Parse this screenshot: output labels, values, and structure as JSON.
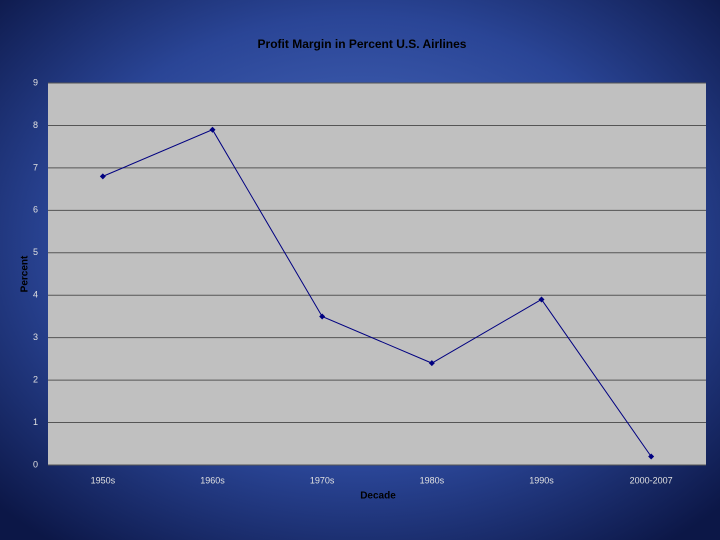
{
  "chart_data": {
    "type": "line",
    "title": "Profit Margin in Percent U.S. Airlines",
    "x_label": "Decade",
    "y_label": "Percent",
    "categories": [
      "1950s",
      "1960s",
      "1970s",
      "1980s",
      "1990s",
      "2000-2007"
    ],
    "values": [
      6.8,
      7.9,
      3.5,
      2.4,
      3.9,
      0.2
    ],
    "color": "#000080",
    "ylim": [
      0,
      9
    ],
    "yticks": [
      0,
      1,
      2,
      3,
      4,
      5,
      6,
      7,
      8,
      9
    ],
    "grid": true
  }
}
